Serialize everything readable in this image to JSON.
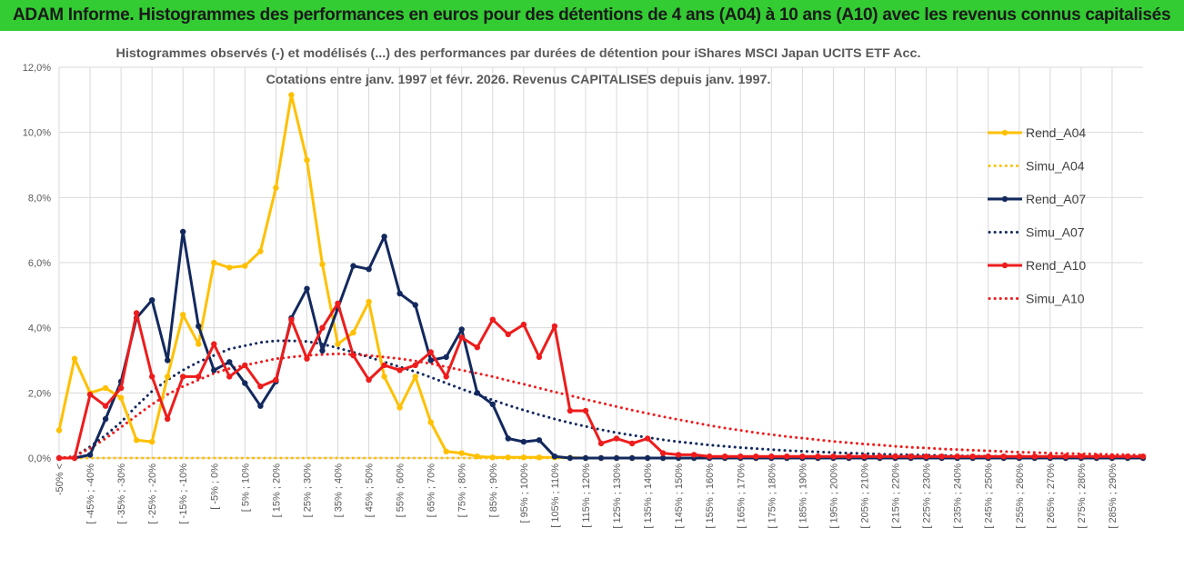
{
  "banner": {
    "title": "ADAM Informe. Histogrammes des performances en euros pour des détentions de 4 ans (A04) à 10 ans (A10) avec les revenus connus capitalisés"
  },
  "colors": {
    "banner": "#33cc33",
    "A04": "#ffc000",
    "A07": "#13295e",
    "A10": "#ee1c1c",
    "grid": "#d9d9d9",
    "axis_text": "#595959"
  },
  "chart_data": {
    "type": "line",
    "title_line1": "Histogrammes observés (-) et modélisés (...) des performances par durées de détention pour iShares MSCI Japan UCITS ETF Acc.",
    "title_line2": "Cotations entre janv. 1997 et févr. 2026. Revenus CAPITALISES depuis janv. 1997.",
    "ylim": [
      0,
      12
    ],
    "yticks": [
      "0,0%",
      "2,0%",
      "4,0%",
      "6,0%",
      "8,0%",
      "10,0%",
      "12,0%"
    ],
    "grid": true,
    "legend_position": "right",
    "x_tick_labels": [
      "-50% <",
      "[ -45% ; -40%",
      "[ -35% ; -30%",
      "[ -25% ; -20%",
      "[ -15% ; -10%",
      "[ -5% ; 0%",
      "[ 5% ; 10%",
      "[ 15% ; 20%",
      "[ 25% ; 30%",
      "[ 35% ; 40%",
      "[ 45% ; 50%",
      "[ 55% ; 60%",
      "[ 65% ; 70%",
      "[ 75% ; 80%",
      "[ 85% ; 90%",
      "[ 95% ; 100%",
      "[ 105% ; 110%",
      "[ 115% ; 120%",
      "[ 125% ; 130%",
      "[ 135% ; 140%",
      "[ 145% ; 150%",
      "[ 155% ; 160%",
      "[ 165% ; 170%",
      "[ 175% ; 180%",
      "[ 185% ; 190%",
      "[ 195% ; 200%",
      "[ 205% ; 210%",
      "[ 215% ; 220%",
      "[ 225% ; 230%",
      "[ 235% ; 240%",
      "[ 245% ; 250%",
      "[ 255% ; 260%",
      "[ 265% ; 270%",
      "[ 275% ; 280%",
      "[ 285% ; 290%"
    ],
    "series": [
      {
        "name": "Rend_A04",
        "style": "solid",
        "color": "#ffc000",
        "values": [
          0.85,
          3.05,
          2.0,
          2.15,
          1.85,
          0.55,
          0.5,
          2.5,
          4.4,
          3.5,
          6.0,
          5.85,
          5.9,
          6.35,
          8.3,
          11.15,
          9.15,
          5.95,
          3.5,
          3.85,
          4.8,
          2.5,
          1.55,
          2.5,
          1.1,
          0.2,
          0.15,
          0.05,
          0.02,
          0.02,
          0.02,
          0.02,
          0.02,
          0.01,
          0,
          0,
          0,
          0,
          0,
          0,
          0,
          0,
          0,
          0,
          0,
          0,
          0,
          0,
          0,
          0,
          0,
          0,
          0,
          0,
          0,
          0,
          0,
          0,
          0,
          0,
          0,
          0,
          0,
          0,
          0,
          0,
          0,
          0,
          0,
          0,
          0
        ]
      },
      {
        "name": "Simu_A04",
        "style": "dotted",
        "color": "#ffc000",
        "values": [
          0,
          0,
          0,
          0,
          0,
          0,
          0,
          0,
          0,
          0,
          0,
          0,
          0,
          0,
          0,
          0,
          0,
          0,
          0,
          0,
          0,
          0,
          0,
          0,
          0,
          0,
          0,
          0,
          0,
          0,
          0,
          0,
          0,
          0,
          0,
          0,
          0,
          0,
          0,
          0,
          0,
          0,
          0,
          0,
          0,
          0,
          0,
          0,
          0,
          0,
          0,
          0,
          0,
          0,
          0,
          0,
          0,
          0,
          0,
          0,
          0,
          0,
          0,
          0,
          0,
          0,
          0,
          0,
          0,
          0,
          0
        ]
      },
      {
        "name": "Rend_A07",
        "style": "solid",
        "color": "#13295e",
        "values": [
          0,
          0,
          0.1,
          1.2,
          2.35,
          4.3,
          4.85,
          3.0,
          6.95,
          4.05,
          2.7,
          2.95,
          2.3,
          1.6,
          2.35,
          4.3,
          5.2,
          3.3,
          4.6,
          5.9,
          5.8,
          6.8,
          5.05,
          4.7,
          3.0,
          3.1,
          3.95,
          2.0,
          1.65,
          0.6,
          0.5,
          0.55,
          0.05,
          0,
          0,
          0,
          0,
          0,
          0,
          0,
          0,
          0,
          0,
          0,
          0,
          0,
          0,
          0,
          0,
          0,
          0,
          0,
          0,
          0,
          0,
          0,
          0,
          0,
          0,
          0,
          0,
          0,
          0,
          0,
          0,
          0,
          0,
          0,
          0,
          0,
          0
        ]
      },
      {
        "name": "Simu_A07",
        "style": "dotted",
        "color": "#13295e",
        "values": [
          0,
          0.05,
          0.35,
          0.7,
          1.1,
          1.6,
          2.05,
          2.4,
          2.7,
          2.95,
          3.15,
          3.35,
          3.45,
          3.55,
          3.6,
          3.6,
          3.58,
          3.5,
          3.38,
          3.25,
          3.1,
          2.95,
          2.8,
          2.65,
          2.48,
          2.3,
          2.12,
          1.95,
          1.78,
          1.62,
          1.47,
          1.33,
          1.2,
          1.08,
          0.97,
          0.87,
          0.78,
          0.7,
          0.63,
          0.56,
          0.5,
          0.45,
          0.4,
          0.36,
          0.32,
          0.29,
          0.26,
          0.23,
          0.21,
          0.19,
          0.17,
          0.15,
          0.14,
          0.12,
          0.11,
          0.1,
          0.09,
          0.08,
          0.07,
          0.06,
          0.06,
          0.05,
          0.05,
          0.04,
          0.04,
          0.03,
          0.03,
          0.03,
          0.02,
          0.02,
          0.02
        ]
      },
      {
        "name": "Rend_A10",
        "style": "solid",
        "color": "#ee1c1c",
        "values": [
          0,
          0,
          1.95,
          1.6,
          2.15,
          4.45,
          2.5,
          1.2,
          2.5,
          2.5,
          3.5,
          2.5,
          2.85,
          2.2,
          2.4,
          4.25,
          3.05,
          4.0,
          4.75,
          3.15,
          2.4,
          2.85,
          2.7,
          2.85,
          3.25,
          2.5,
          3.7,
          3.4,
          4.25,
          3.8,
          4.1,
          3.1,
          4.05,
          1.45,
          1.45,
          0.45,
          0.6,
          0.45,
          0.6,
          0.15,
          0.1,
          0.1,
          0.05,
          0.05,
          0.05,
          0.05,
          0.05,
          0.05,
          0.05,
          0.05,
          0.05,
          0.05,
          0.05,
          0.05,
          0.05,
          0.05,
          0.05,
          0.05,
          0.05,
          0.05,
          0.05,
          0.05,
          0.05,
          0.05,
          0.05,
          0.05,
          0.05,
          0.05,
          0.05,
          0.05,
          0.05
        ]
      },
      {
        "name": "Simu_A10",
        "style": "dotted",
        "color": "#ee1c1c",
        "values": [
          0,
          0.05,
          0.3,
          0.6,
          0.95,
          1.3,
          1.65,
          1.95,
          2.2,
          2.4,
          2.6,
          2.75,
          2.85,
          2.95,
          3.05,
          3.1,
          3.15,
          3.18,
          3.2,
          3.18,
          3.15,
          3.1,
          3.05,
          2.98,
          2.9,
          2.8,
          2.7,
          2.6,
          2.5,
          2.38,
          2.27,
          2.15,
          2.03,
          1.92,
          1.8,
          1.69,
          1.58,
          1.47,
          1.37,
          1.27,
          1.18,
          1.09,
          1.0,
          0.92,
          0.85,
          0.78,
          0.72,
          0.66,
          0.61,
          0.56,
          0.51,
          0.47,
          0.43,
          0.4,
          0.36,
          0.33,
          0.31,
          0.28,
          0.26,
          0.24,
          0.22,
          0.2,
          0.18,
          0.17,
          0.15,
          0.14,
          0.13,
          0.12,
          0.11,
          0.1,
          0.09
        ]
      }
    ]
  }
}
